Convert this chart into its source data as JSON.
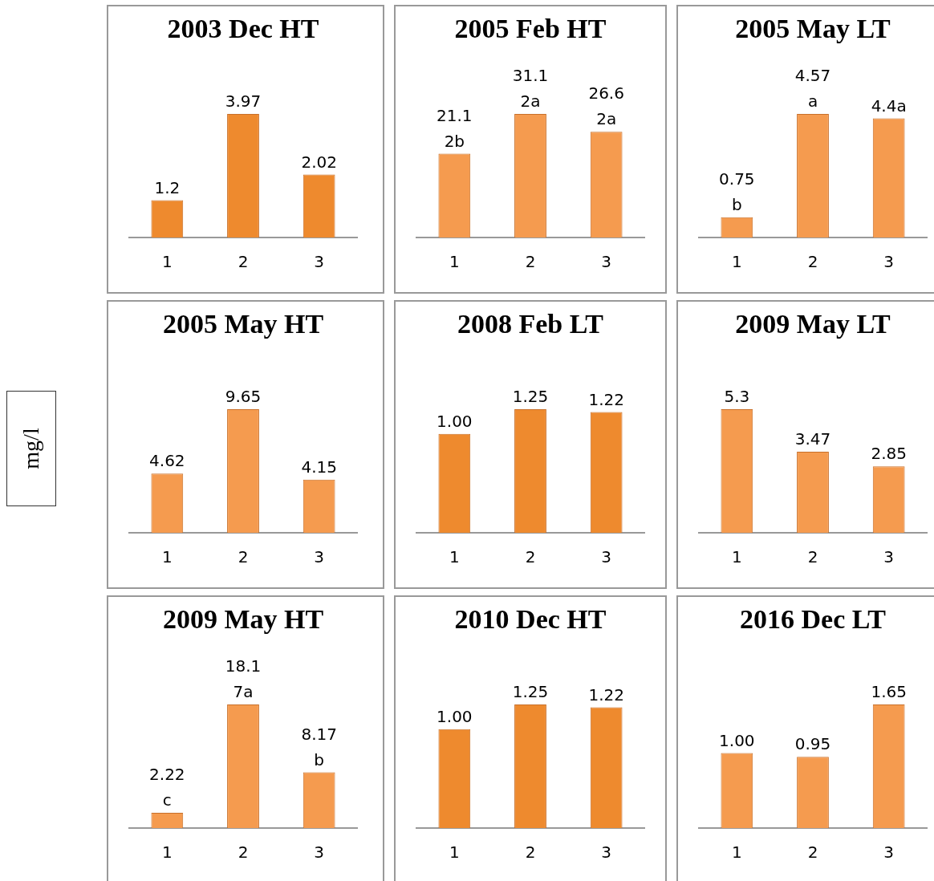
{
  "chart_data": [
    {
      "type": "bar",
      "title": "2003 Dec HT",
      "categories": [
        "1",
        "2",
        "3"
      ],
      "tick_labels": "x",
      "color": "#ee8a2e",
      "values": [
        1.2,
        3.97,
        2.02
      ],
      "value_labels": [
        "1.2",
        "3.97",
        "2.02"
      ]
    },
    {
      "type": "bar",
      "title": "2005 Feb HT",
      "categories": [
        "1",
        "2",
        "3"
      ],
      "tick_labels": "x",
      "color": "#f59b4f",
      "values": [
        21.1,
        31.1,
        26.6
      ],
      "value_labels": [
        "21.1\n2b",
        "31.1\n2a",
        "26.6\n2a"
      ]
    },
    {
      "type": "bar",
      "title": "2005 May LT",
      "categories": [
        "1",
        "2",
        "3"
      ],
      "tick_labels": "x",
      "color": "#f59b4f",
      "values": [
        0.75,
        4.57,
        4.4
      ],
      "value_labels": [
        "0.75\nb",
        "4.57\na",
        "4.4a"
      ]
    },
    {
      "type": "bar",
      "title": "2005 May HT",
      "ylabel": "mg/l",
      "categories": [
        "1",
        "2",
        "3"
      ],
      "tick_labels": "x",
      "color": "#f59b4f",
      "values": [
        4.62,
        9.65,
        4.15
      ],
      "value_labels": [
        "4.62",
        "9.65",
        "4.15"
      ]
    },
    {
      "type": "bar",
      "title": "2008 Feb LT",
      "categories": [
        "1",
        "2",
        "3"
      ],
      "tick_labels": "x",
      "color": "#ee8a2e",
      "values": [
        1.0,
        1.25,
        1.22
      ],
      "value_labels": [
        "1.00",
        "1.25",
        "1.22"
      ]
    },
    {
      "type": "bar",
      "title": "2009 May LT",
      "categories": [
        "1",
        "2",
        "3"
      ],
      "tick_labels": "x",
      "color": "#f59b4f",
      "values": [
        5.3,
        3.47,
        2.85
      ],
      "value_labels": [
        "5.3",
        "3.47",
        "2.85"
      ]
    },
    {
      "type": "bar",
      "title": "2009 May HT",
      "categories": [
        "1",
        "2",
        "3"
      ],
      "tick_labels": "x",
      "color": "#f59b4f",
      "values": [
        2.22,
        18.1,
        8.17
      ],
      "value_labels": [
        "2.22\nc",
        "18.1\n7a",
        "8.17\nb"
      ]
    },
    {
      "type": "bar",
      "title": "2010 Dec HT",
      "categories": [
        "1",
        "2",
        "3"
      ],
      "tick_labels": "x",
      "color": "#ee8a2e",
      "values": [
        1.0,
        1.25,
        1.22
      ],
      "value_labels": [
        "1.00",
        "1.25",
        "1.22"
      ]
    },
    {
      "type": "bar",
      "title": "2016 Dec LT",
      "categories": [
        "1",
        "2",
        "3"
      ],
      "tick_labels": "x",
      "color": "#f59b4f",
      "values": [
        1.0,
        0.95,
        1.65
      ],
      "value_labels": [
        "1.00",
        "0.95",
        "1.65"
      ]
    }
  ]
}
